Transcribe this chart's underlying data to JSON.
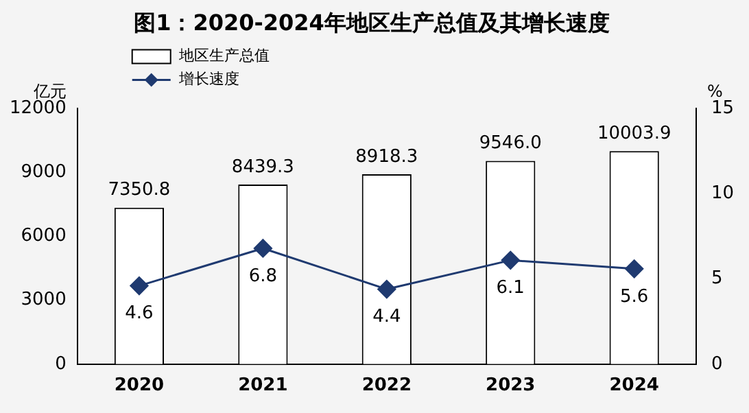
{
  "chart_data": {
    "type": "bar",
    "title": "图1：2020-2024年地区生产总值及其增长速度",
    "ylabel": "亿元",
    "y2label": "%",
    "categories": [
      "2020",
      "2021",
      "2022",
      "2023",
      "2024"
    ],
    "series": [
      {
        "name": "地区生产总值",
        "color": "#ffffff",
        "values": [
          7350.8,
          8439.3,
          8918.3,
          9546.0,
          10003.9
        ],
        "value_labels": [
          "7350.8",
          "8439.3",
          "8918.3",
          "9546.0",
          "10003.9"
        ]
      },
      {
        "name": "增长速度",
        "type": "line",
        "axis": "y2",
        "color": "#1f3a70",
        "values": [
          4.6,
          6.8,
          4.4,
          6.1,
          5.6
        ],
        "value_labels": [
          "4.6",
          "6.8",
          "4.4",
          "6.1",
          "5.6"
        ]
      }
    ],
    "ylim": [
      0,
      12000
    ],
    "yticks": [
      0,
      3000,
      6000,
      9000,
      12000
    ],
    "y2lim": [
      0,
      15
    ],
    "y2ticks": [
      0,
      5,
      10,
      15
    ],
    "grid": false,
    "legend": "top left",
    "marker": "diamond"
  }
}
